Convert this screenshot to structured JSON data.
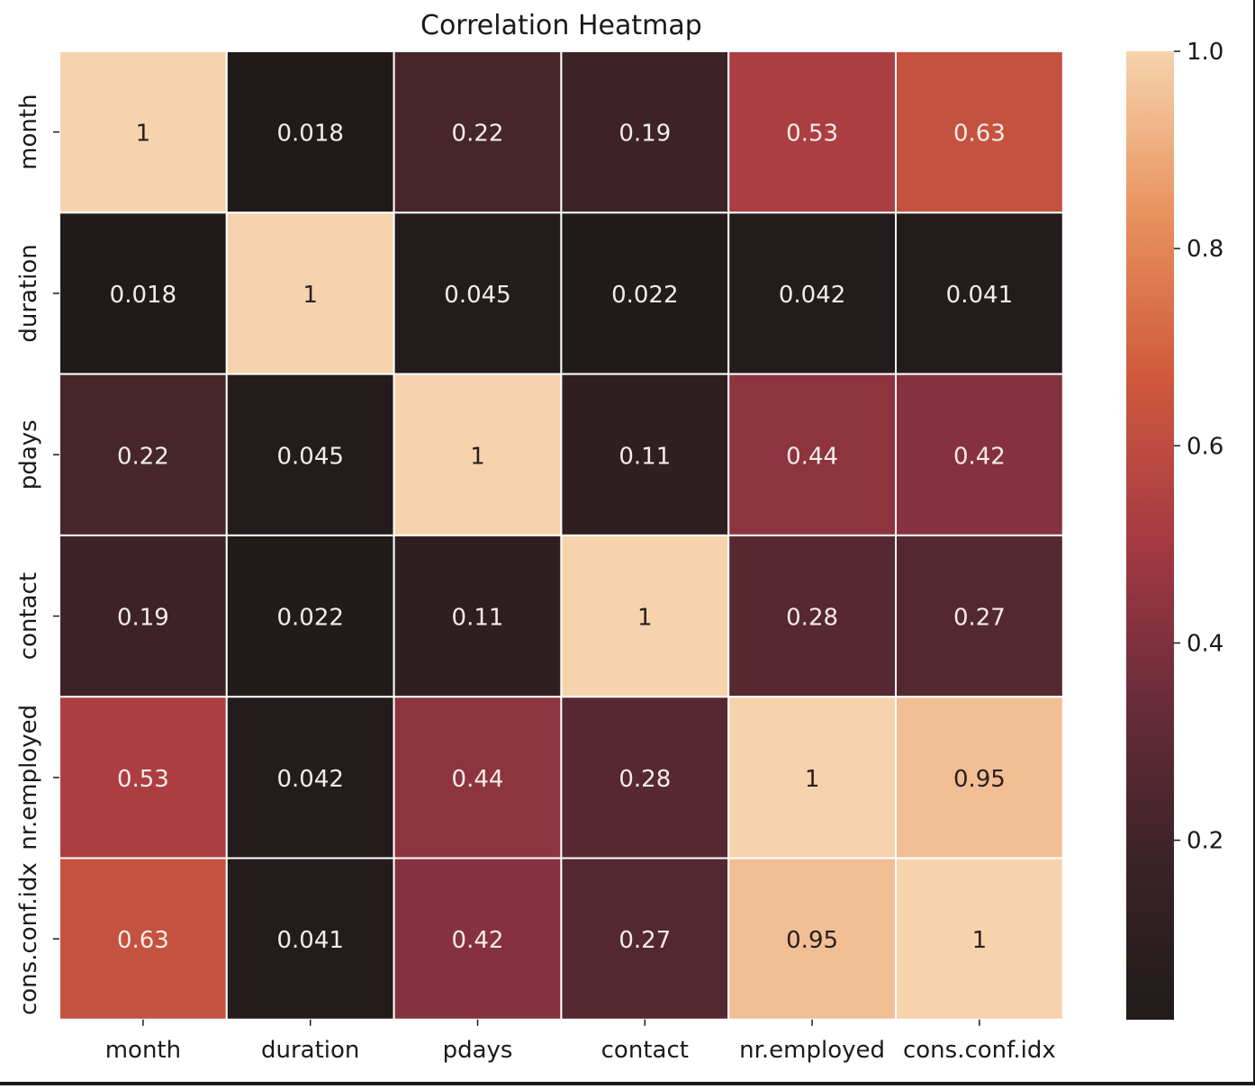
{
  "chart_data": {
    "type": "heatmap",
    "title": "Correlation Heatmap",
    "xlabel": "",
    "ylabel": "",
    "x_categories": [
      "month",
      "duration",
      "pdays",
      "contact",
      "nr.employed",
      "cons.conf.idx"
    ],
    "y_categories": [
      "month",
      "duration",
      "pdays",
      "contact",
      "nr.employed",
      "cons.conf.idx"
    ],
    "values": [
      [
        1,
        0.018,
        0.22,
        0.19,
        0.53,
        0.63
      ],
      [
        0.018,
        1,
        0.045,
        0.022,
        0.042,
        0.041
      ],
      [
        0.22,
        0.045,
        1,
        0.11,
        0.44,
        0.42
      ],
      [
        0.19,
        0.022,
        0.11,
        1,
        0.28,
        0.27
      ],
      [
        0.53,
        0.042,
        0.44,
        0.28,
        1,
        0.95
      ],
      [
        0.63,
        0.041,
        0.42,
        0.27,
        0.95,
        1
      ]
    ],
    "annotations": [
      [
        "1",
        "0.018",
        "0.22",
        "0.19",
        "0.53",
        "0.63"
      ],
      [
        "0.018",
        "1",
        "0.045",
        "0.022",
        "0.042",
        "0.041"
      ],
      [
        "0.22",
        "0.045",
        "1",
        "0.11",
        "0.44",
        "0.42"
      ],
      [
        "0.19",
        "0.022",
        "0.11",
        "1",
        "0.28",
        "0.27"
      ],
      [
        "0.53",
        "0.042",
        "0.44",
        "0.28",
        "1",
        "0.95"
      ],
      [
        "0.63",
        "0.041",
        "0.42",
        "0.27",
        "0.95",
        "1"
      ]
    ],
    "colorbar": {
      "range": [
        0.018,
        1
      ],
      "ticks": [
        0.2,
        0.4,
        0.6,
        0.8,
        1.0
      ],
      "tick_labels": [
        "0.2",
        "0.4",
        "0.6",
        "0.8",
        "1.0"
      ],
      "colormap": "rocket-like",
      "stops": [
        "#201b1a",
        "#3b2327",
        "#6a2c3a",
        "#a73a43",
        "#d05a3d",
        "#e8935e",
        "#f6d3ad"
      ]
    },
    "grid": false,
    "cell_separator_color": "#ffffff"
  }
}
